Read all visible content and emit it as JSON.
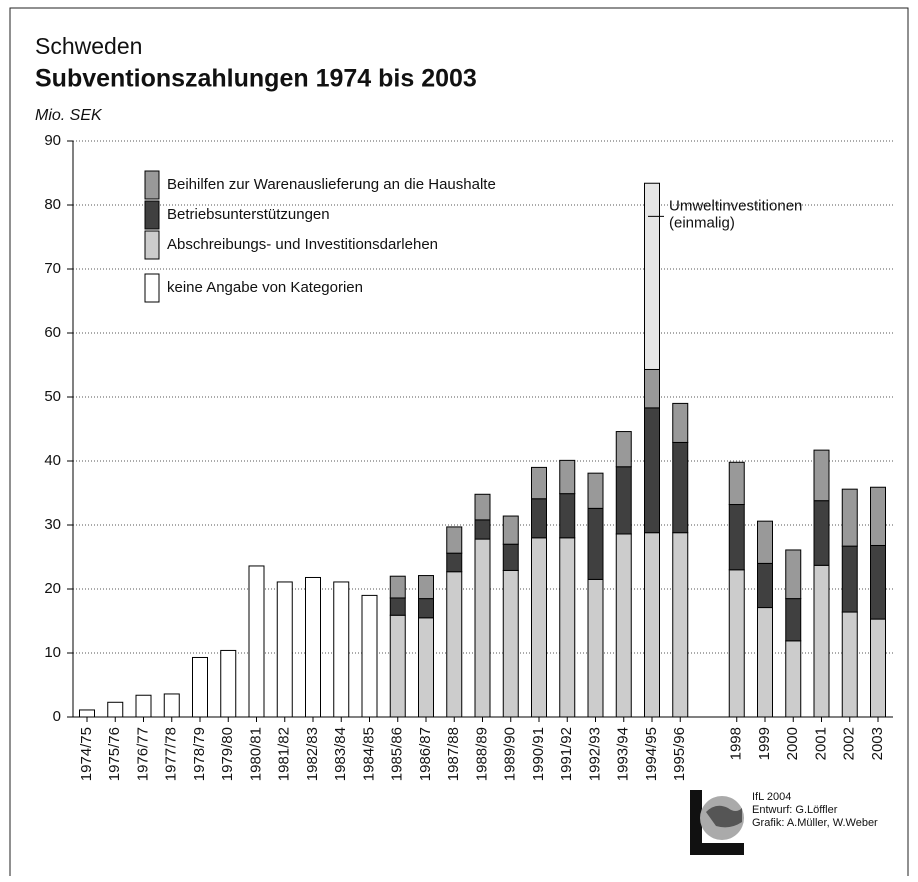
{
  "chart_data": {
    "type": "bar",
    "stacked": true,
    "supertitle": "Schweden",
    "title": "Subventionszahlungen 1974 bis 2003",
    "y_label": "Mio. SEK",
    "categories": [
      "1974/75",
      "1975/76",
      "1976/77",
      "1977/78",
      "1978/79",
      "1979/80",
      "1980/81",
      "1981/82",
      "1982/83",
      "1983/84",
      "1984/85",
      "1985/86",
      "1986/87",
      "1987/88",
      "1988/89",
      "1989/90",
      "1990/91",
      "1991/92",
      "1992/93",
      "1993/94",
      "1994/95",
      "1995/96",
      null,
      "1998",
      "1999",
      "2000",
      "2001",
      "2002",
      "2003"
    ],
    "series": [
      {
        "name": "keine Angabe von Kategorien",
        "color": "#ffffff",
        "values": [
          1.1,
          2.3,
          3.4,
          3.6,
          9.3,
          10.4,
          23.6,
          21.1,
          21.8,
          21.1,
          19.0,
          null,
          null,
          null,
          null,
          null,
          null,
          null,
          null,
          null,
          null,
          null,
          null,
          null,
          null,
          null,
          null,
          null,
          null
        ]
      },
      {
        "name": "Abschreibungs- und Investitionsdarlehen",
        "color": "#cccccc",
        "values": [
          null,
          null,
          null,
          null,
          null,
          null,
          null,
          null,
          null,
          null,
          null,
          15.9,
          15.5,
          22.7,
          27.8,
          22.9,
          28.0,
          28.0,
          21.5,
          28.6,
          28.8,
          28.8,
          null,
          23.0,
          17.1,
          11.9,
          23.7,
          16.4,
          15.3
        ]
      },
      {
        "name": "Betriebsunterstützungen",
        "color": "#404040",
        "values": [
          null,
          null,
          null,
          null,
          null,
          null,
          null,
          null,
          null,
          null,
          null,
          2.7,
          3.0,
          2.9,
          3.0,
          4.1,
          6.1,
          6.9,
          11.1,
          10.5,
          19.5,
          14.1,
          null,
          10.2,
          6.9,
          6.6,
          10.1,
          10.3,
          11.5
        ]
      },
      {
        "name": "Beihilfen zur Warenauslieferung an die Haushalte",
        "color": "#999999",
        "values": [
          null,
          null,
          null,
          null,
          null,
          null,
          null,
          null,
          null,
          null,
          null,
          3.4,
          3.6,
          4.1,
          4.0,
          4.4,
          4.9,
          5.2,
          5.5,
          5.5,
          6.0,
          6.1,
          null,
          6.6,
          6.6,
          7.6,
          7.9,
          8.9,
          9.1
        ]
      },
      {
        "name": "Umweltinvestitionen",
        "note": "(einmalig)",
        "legend": false,
        "color": "#e6e6e6",
        "values": [
          null,
          null,
          null,
          null,
          null,
          null,
          null,
          null,
          null,
          null,
          null,
          null,
          null,
          null,
          null,
          null,
          null,
          null,
          null,
          null,
          29.1,
          null,
          null,
          null,
          null,
          null,
          null,
          null,
          null
        ]
      }
    ],
    "ylim": [
      0,
      90
    ],
    "yticks": [
      0,
      10,
      20,
      30,
      40,
      50,
      60,
      70,
      80,
      90
    ],
    "grid": true,
    "credits": [
      "IfL 2004",
      "Entwurf: G.Löffler",
      "Grafik: A.Müller, W.Weber"
    ]
  }
}
